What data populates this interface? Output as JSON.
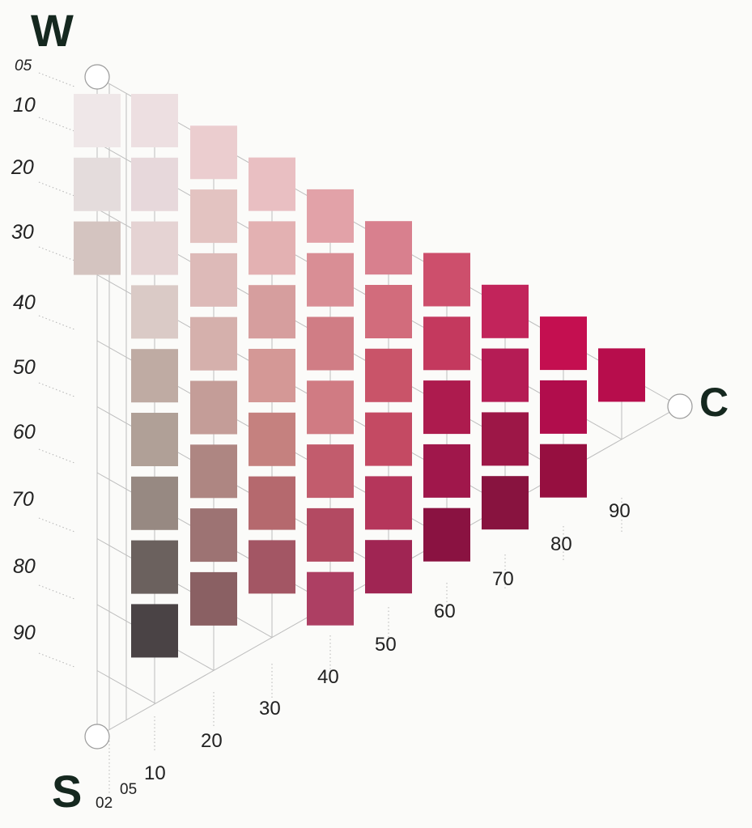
{
  "corners": {
    "whiteness": "W",
    "blackness": "S",
    "chromaticness": "C"
  },
  "blackness_scale": [
    "05",
    "10",
    "20",
    "30",
    "40",
    "50",
    "60",
    "70",
    "80",
    "90"
  ],
  "chromaticness_scale": [
    "02",
    "05",
    "10",
    "20",
    "30",
    "40",
    "50",
    "60",
    "70",
    "80",
    "90"
  ],
  "swatch_columns": [
    {
      "chromaticness": "05",
      "swatches": [
        {
          "blackness": "10",
          "color": "#efe7e8"
        },
        {
          "blackness": "20",
          "color": "#e4dcdc"
        },
        {
          "blackness": "30",
          "color": "#d4c4c0"
        }
      ]
    },
    {
      "chromaticness": "10",
      "swatches": [
        {
          "blackness": "10",
          "color": "#eddfe1"
        },
        {
          "blackness": "20",
          "color": "#e7d8db"
        },
        {
          "blackness": "30",
          "color": "#e5d3d3"
        },
        {
          "blackness": "40",
          "color": "#dacac6"
        },
        {
          "blackness": "50",
          "color": "#bfaba3"
        },
        {
          "blackness": "60",
          "color": "#b0a097"
        },
        {
          "blackness": "70",
          "color": "#978982"
        },
        {
          "blackness": "80",
          "color": "#6b615e"
        },
        {
          "blackness": "90",
          "color": "#4a4345"
        }
      ]
    },
    {
      "chromaticness": "20",
      "swatches": [
        {
          "blackness": "10",
          "color": "#ebcdcf"
        },
        {
          "blackness": "20",
          "color": "#e3c3c1"
        },
        {
          "blackness": "30",
          "color": "#ddbab8"
        },
        {
          "blackness": "40",
          "color": "#d5b0ac"
        },
        {
          "blackness": "50",
          "color": "#c49d98"
        },
        {
          "blackness": "60",
          "color": "#ae8682"
        },
        {
          "blackness": "70",
          "color": "#9d7373"
        },
        {
          "blackness": "80",
          "color": "#8a6063"
        }
      ]
    },
    {
      "chromaticness": "30",
      "swatches": [
        {
          "blackness": "10",
          "color": "#e9bfc2"
        },
        {
          "blackness": "20",
          "color": "#e3b1b2"
        },
        {
          "blackness": "30",
          "color": "#d69e9e"
        },
        {
          "blackness": "40",
          "color": "#d49896"
        },
        {
          "blackness": "50",
          "color": "#c5817f"
        },
        {
          "blackness": "60",
          "color": "#b5696e"
        },
        {
          "blackness": "70",
          "color": "#a35664"
        }
      ]
    },
    {
      "chromaticness": "40",
      "swatches": [
        {
          "blackness": "10",
          "color": "#e2a2a8"
        },
        {
          "blackness": "20",
          "color": "#d98e95"
        },
        {
          "blackness": "30",
          "color": "#d07d85"
        },
        {
          "blackness": "40",
          "color": "#d07b83"
        },
        {
          "blackness": "50",
          "color": "#c25c6d"
        },
        {
          "blackness": "60",
          "color": "#b34a62"
        },
        {
          "blackness": "70",
          "color": "#ad3f63"
        }
      ]
    },
    {
      "chromaticness": "50",
      "swatches": [
        {
          "blackness": "10",
          "color": "#d8808e"
        },
        {
          "blackness": "20",
          "color": "#d26c7c"
        },
        {
          "blackness": "30",
          "color": "#c95469"
        },
        {
          "blackness": "40",
          "color": "#c44a63"
        },
        {
          "blackness": "50",
          "color": "#b5365b"
        },
        {
          "blackness": "60",
          "color": "#a02553"
        }
      ]
    },
    {
      "chromaticness": "60",
      "swatches": [
        {
          "blackness": "10",
          "color": "#cd4f6c"
        },
        {
          "blackness": "20",
          "color": "#c4395e"
        },
        {
          "blackness": "30",
          "color": "#ad1b4e"
        },
        {
          "blackness": "40",
          "color": "#a0174b"
        },
        {
          "blackness": "50",
          "color": "#8a1241"
        }
      ]
    },
    {
      "chromaticness": "70",
      "swatches": [
        {
          "blackness": "10",
          "color": "#c2245b"
        },
        {
          "blackness": "20",
          "color": "#b51c55"
        },
        {
          "blackness": "30",
          "color": "#9d1747"
        },
        {
          "blackness": "40",
          "color": "#88133f"
        }
      ]
    },
    {
      "chromaticness": "80",
      "swatches": [
        {
          "blackness": "10",
          "color": "#c40f50"
        },
        {
          "blackness": "20",
          "color": "#b10d4c"
        },
        {
          "blackness": "30",
          "color": "#960f40"
        }
      ]
    },
    {
      "chromaticness": "90",
      "swatches": [
        {
          "blackness": "10",
          "color": "#b70d4c"
        }
      ]
    }
  ]
}
